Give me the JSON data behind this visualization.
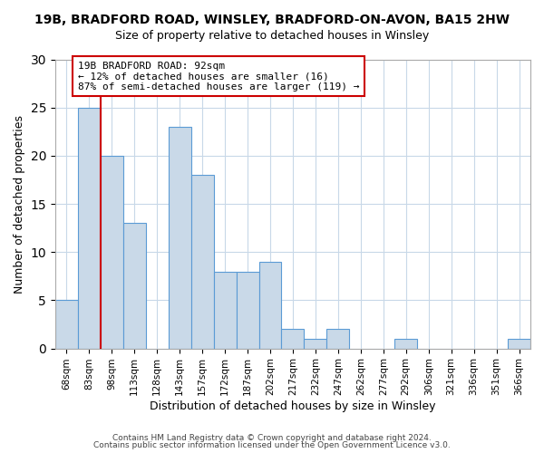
{
  "title": "19B, BRADFORD ROAD, WINSLEY, BRADFORD-ON-AVON, BA15 2HW",
  "subtitle": "Size of property relative to detached houses in Winsley",
  "xlabel": "Distribution of detached houses by size in Winsley",
  "ylabel": "Number of detached properties",
  "categories": [
    "68sqm",
    "83sqm",
    "98sqm",
    "113sqm",
    "128sqm",
    "143sqm",
    "157sqm",
    "172sqm",
    "187sqm",
    "202sqm",
    "217sqm",
    "232sqm",
    "247sqm",
    "262sqm",
    "277sqm",
    "292sqm",
    "306sqm",
    "321sqm",
    "336sqm",
    "351sqm",
    "366sqm"
  ],
  "values": [
    5,
    25,
    20,
    13,
    0,
    23,
    18,
    8,
    8,
    9,
    2,
    1,
    2,
    0,
    0,
    1,
    0,
    0,
    0,
    0,
    1
  ],
  "bar_color": "#c9d9e8",
  "bar_edge_color": "#5b9bd5",
  "vline_color": "#cc0000",
  "vline_pos": 1.5,
  "ylim": [
    0,
    30
  ],
  "yticks": [
    0,
    5,
    10,
    15,
    20,
    25,
    30
  ],
  "annotation_text": "19B BRADFORD ROAD: 92sqm\n← 12% of detached houses are smaller (16)\n87% of semi-detached houses are larger (119) →",
  "annotation_box_color": "#ffffff",
  "annotation_box_edge": "#cc0000",
  "footer1": "Contains HM Land Registry data © Crown copyright and database right 2024.",
  "footer2": "Contains public sector information licensed under the Open Government Licence v3.0."
}
